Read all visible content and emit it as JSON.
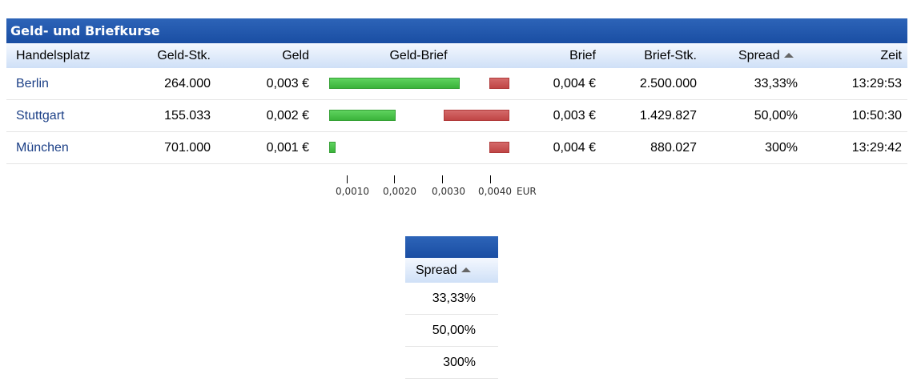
{
  "title": "Geld- und Briefkurse",
  "columns": {
    "handelsplatz": "Handelsplatz",
    "geld_stk": "Geld-Stk.",
    "geld": "Geld",
    "geld_brief": "Geld-Brief",
    "brief": "Brief",
    "brief_stk": "Brief-Stk.",
    "spread": "Spread",
    "zeit": "Zeit"
  },
  "sort": {
    "column": "spread",
    "direction": "ascending",
    "icon": "sort-up-icon"
  },
  "colors": {
    "title_bg": "#1a4ea3",
    "link": "#1b3f86",
    "geld_bar": "#3ab33a",
    "brief_bar": "#c04545"
  },
  "rows": [
    {
      "handelsplatz": "Berlin",
      "geld_stk": "264.000",
      "geld": "0,003 €",
      "brief": "0,004 €",
      "brief_stk": "2.500.000",
      "spread": "33,33%",
      "zeit": "13:29:53",
      "geld_value": 0.003,
      "brief_value": 0.004
    },
    {
      "handelsplatz": "Stuttgart",
      "geld_stk": "155.033",
      "geld": "0,002 €",
      "brief": "0,003 €",
      "brief_stk": "1.429.827",
      "spread": "50,00%",
      "zeit": "10:50:30",
      "geld_value": 0.002,
      "brief_value": 0.003
    },
    {
      "handelsplatz": "München",
      "geld_stk": "701.000",
      "geld": "0,001 €",
      "brief": "0,004 €",
      "brief_stk": "880.027",
      "spread": "300%",
      "zeit": "13:29:42",
      "geld_value": 0.001,
      "brief_value": 0.004
    }
  ],
  "axis": {
    "ticks": [
      "0,0010",
      "0,0020",
      "0,0030",
      "0,0040"
    ],
    "unit": "EUR"
  },
  "mini_table": {
    "header": "Spread",
    "values": [
      "33,33%",
      "50,00%",
      "300%"
    ]
  }
}
